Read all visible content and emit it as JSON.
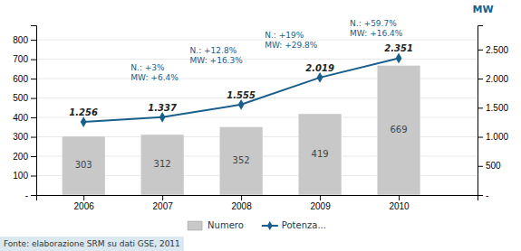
{
  "chart_data": {
    "type": "bar",
    "x": [
      2006,
      2007,
      2008,
      2009,
      2010
    ],
    "xlim": [
      2005.4,
      2011.0
    ],
    "xticks": [
      2006,
      2007,
      2008,
      2009,
      2010
    ],
    "ylim": [
      0,
      875
    ],
    "yticks": [
      {
        "value": 0,
        "label": "-"
      },
      100,
      200,
      300,
      400,
      500,
      600,
      700,
      800
    ],
    "y2lim": [
      0,
      2916.67
    ],
    "y2ticks": [
      {
        "value": 0,
        "label": "-"
      },
      500,
      {
        "value": 1000,
        "label": "1.000"
      },
      {
        "value": 1500,
        "label": "1.500"
      },
      {
        "value": 2000,
        "label": "2.000"
      },
      {
        "value": 2500,
        "label": "2.500"
      }
    ],
    "y2label": "MW",
    "series": [
      {
        "name": "Numero",
        "type": "bar",
        "color": "#c8c8c8",
        "values": [
          303,
          312,
          352,
          419,
          669
        ]
      },
      {
        "name": "Potenza...",
        "type": "line",
        "axis": "y2",
        "color": "#1a5e8a",
        "marker": "diamond",
        "values": [
          1256,
          1337,
          1555,
          2019,
          2351
        ],
        "value_labels": [
          "1.256",
          "1.337",
          "1.555",
          "2.019",
          "2.351"
        ]
      }
    ],
    "data_labels": true,
    "annotations": [
      {
        "x": 2006.6,
        "y": 580,
        "text": "N.: +3%\nMW: +6.4%"
      },
      {
        "x": 2007.35,
        "y": 670,
        "text": "N.: +12.8%\nMW: +16.3%"
      },
      {
        "x": 2008.3,
        "y": 750,
        "text": "N.: +19%\nMW: +29.8%"
      },
      {
        "x": 2009.38,
        "y": 810,
        "text": "N.: +59.7%\nMW: +16.4%"
      }
    ],
    "source": "Fonte: elaborazione SRM su dati GSE, 2011",
    "grid": true,
    "legend": "bottom"
  }
}
